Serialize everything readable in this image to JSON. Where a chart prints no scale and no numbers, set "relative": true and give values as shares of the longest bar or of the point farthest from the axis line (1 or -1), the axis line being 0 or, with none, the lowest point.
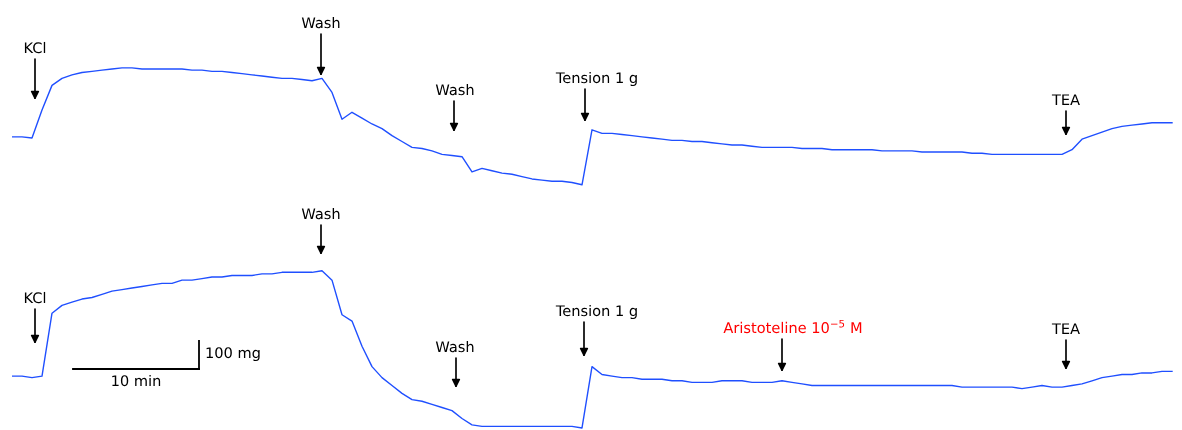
{
  "chart_data": [
    {
      "type": "line",
      "relative": true,
      "tick_labels": false,
      "categories": [
        null,
        null,
        null,
        null,
        null,
        null,
        null,
        null,
        null,
        null,
        null,
        null,
        null,
        null,
        null,
        null,
        null,
        null,
        null,
        null,
        null,
        null,
        null,
        null,
        null,
        null,
        null,
        null,
        null,
        null,
        null,
        null,
        null,
        null,
        null,
        null,
        null,
        null,
        null,
        null,
        null,
        null,
        null,
        null,
        null,
        null,
        null,
        null,
        null,
        null,
        null,
        null,
        null,
        null,
        null,
        null,
        null,
        null,
        null,
        null,
        null,
        null,
        null,
        null,
        null,
        null,
        null,
        null,
        null,
        null,
        null,
        null,
        null,
        null,
        null,
        null,
        null,
        null,
        null,
        null,
        null,
        null,
        null,
        null,
        null,
        null,
        null,
        null,
        null,
        null,
        null,
        null,
        null,
        null,
        null,
        null,
        null,
        null,
        null,
        null,
        null,
        null,
        null,
        null,
        null,
        null,
        null,
        null,
        null,
        null,
        null,
        null,
        null,
        null,
        null,
        null,
        null
      ],
      "series": [
        {
          "color": "#1f4fff",
          "values": [
            0.41,
            0.41,
            0.4,
            0.64,
            0.85,
            0.91,
            0.94,
            0.96,
            0.97,
            0.98,
            0.99,
            1.0,
            1.0,
            0.99,
            0.99,
            0.99,
            0.99,
            0.99,
            0.98,
            0.98,
            0.97,
            0.97,
            0.96,
            0.95,
            0.94,
            0.93,
            0.92,
            0.91,
            0.91,
            0.9,
            0.89,
            0.91,
            0.79,
            0.56,
            0.62,
            0.57,
            0.52,
            0.48,
            0.42,
            0.37,
            0.32,
            0.31,
            0.29,
            0.26,
            0.25,
            0.24,
            0.11,
            0.14,
            0.12,
            0.1,
            0.09,
            0.07,
            0.05,
            0.04,
            0.03,
            0.03,
            0.02,
            0,
            0.47,
            0.44,
            0.44,
            0.43,
            0.42,
            0.41,
            0.4,
            0.39,
            0.38,
            0.38,
            0.37,
            0.37,
            0.36,
            0.35,
            0.34,
            0.34,
            0.33,
            0.32,
            0.32,
            0.32,
            0.32,
            0.31,
            0.31,
            0.31,
            0.3,
            0.3,
            0.3,
            0.3,
            0.3,
            0.29,
            0.29,
            0.29,
            0.29,
            0.28,
            0.28,
            0.28,
            0.28,
            0.28,
            0.27,
            0.27,
            0.26,
            0.26,
            0.26,
            0.26,
            0.26,
            0.26,
            0.26,
            0.26,
            0.3,
            0.39,
            0.42,
            0.45,
            0.48,
            0.5,
            0.51,
            0.52,
            0.53,
            0.53,
            0.53
          ]
        }
      ],
      "annotations": [
        "KCl",
        "Wash",
        "Wash",
        "Tension 1 g",
        "TEA"
      ]
    },
    {
      "type": "line",
      "relative": true,
      "tick_labels": false,
      "categories": [
        null,
        null,
        null,
        null,
        null,
        null,
        null,
        null,
        null,
        null,
        null,
        null,
        null,
        null,
        null,
        null,
        null,
        null,
        null,
        null,
        null,
        null,
        null,
        null,
        null,
        null,
        null,
        null,
        null,
        null,
        null,
        null,
        null,
        null,
        null,
        null,
        null,
        null,
        null,
        null,
        null,
        null,
        null,
        null,
        null,
        null,
        null,
        null,
        null,
        null,
        null,
        null,
        null,
        null,
        null,
        null,
        null,
        null,
        null,
        null,
        null,
        null,
        null,
        null,
        null,
        null,
        null,
        null,
        null,
        null,
        null,
        null,
        null,
        null,
        null,
        null,
        null,
        null,
        null,
        null,
        null,
        null,
        null,
        null,
        null,
        null,
        null,
        null,
        null,
        null,
        null,
        null,
        null,
        null,
        null,
        null,
        null,
        null,
        null,
        null,
        null,
        null,
        null,
        null,
        null,
        null,
        null,
        null,
        null,
        null,
        null,
        null,
        null,
        null,
        null,
        null,
        null
      ],
      "series": [
        {
          "color": "#1f4fff",
          "values": [
            0.33,
            0.33,
            0.32,
            0.33,
            0.73,
            0.78,
            0.8,
            0.82,
            0.83,
            0.85,
            0.87,
            0.88,
            0.89,
            0.9,
            0.91,
            0.92,
            0.92,
            0.94,
            0.94,
            0.95,
            0.96,
            0.96,
            0.97,
            0.97,
            0.97,
            0.98,
            0.98,
            0.99,
            0.99,
            0.99,
            0.99,
            1.0,
            0.94,
            0.72,
            0.68,
            0.52,
            0.39,
            0.32,
            0.27,
            0.22,
            0.18,
            0.17,
            0.15,
            0.13,
            0.11,
            0.06,
            0.02,
            0.01,
            0.01,
            0.01,
            0.01,
            0.01,
            0.01,
            0.01,
            0.01,
            0.01,
            0.01,
            0,
            0.39,
            0.34,
            0.33,
            0.32,
            0.32,
            0.31,
            0.31,
            0.31,
            0.3,
            0.3,
            0.29,
            0.29,
            0.29,
            0.3,
            0.3,
            0.3,
            0.29,
            0.29,
            0.29,
            0.3,
            0.29,
            0.28,
            0.27,
            0.27,
            0.27,
            0.27,
            0.27,
            0.27,
            0.27,
            0.27,
            0.27,
            0.27,
            0.27,
            0.27,
            0.27,
            0.27,
            0.27,
            0.26,
            0.26,
            0.26,
            0.26,
            0.26,
            0.26,
            0.25,
            0.26,
            0.27,
            0.26,
            0.26,
            0.27,
            0.28,
            0.3,
            0.32,
            0.33,
            0.34,
            0.34,
            0.35,
            0.35,
            0.36,
            0.36
          ]
        }
      ],
      "annotations": [
        "KCl",
        "Wash",
        "Wash",
        "Tension 1 g",
        "Aristoteline 10$^{−5}$ M",
        "TEA",
        "100 mg",
        "10 min"
      ]
    }
  ]
}
